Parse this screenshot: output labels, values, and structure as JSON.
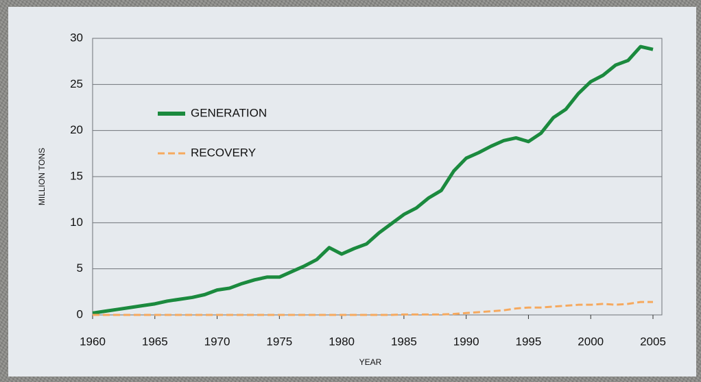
{
  "chart_data": {
    "type": "line",
    "ylabel": "MILLION TONS",
    "xlabel": "YEAR",
    "x": [
      1960,
      1961,
      1962,
      1963,
      1964,
      1965,
      1966,
      1967,
      1968,
      1969,
      1970,
      1971,
      1972,
      1973,
      1974,
      1975,
      1976,
      1977,
      1978,
      1979,
      1980,
      1981,
      1982,
      1983,
      1984,
      1985,
      1986,
      1987,
      1988,
      1989,
      1990,
      1991,
      1992,
      1993,
      1994,
      1995,
      1996,
      1997,
      1998,
      1999,
      2000,
      2001,
      2002,
      2003,
      2004,
      2005
    ],
    "series": [
      {
        "name": "GENERATION",
        "color": "#1b8a3e",
        "style": "solid",
        "values": [
          0.2,
          0.4,
          0.6,
          0.8,
          1.0,
          1.2,
          1.5,
          1.7,
          1.9,
          2.2,
          2.7,
          2.9,
          3.4,
          3.8,
          4.1,
          4.1,
          4.7,
          5.3,
          6.0,
          7.3,
          6.6,
          7.2,
          7.7,
          8.9,
          9.9,
          10.9,
          11.6,
          12.7,
          13.5,
          15.6,
          17.0,
          17.6,
          18.3,
          18.9,
          19.2,
          18.8,
          19.7,
          21.4,
          22.3,
          24.0,
          25.3,
          26.0,
          27.1,
          27.6,
          29.1,
          28.8
        ]
      },
      {
        "name": "RECOVERY",
        "color": "#f6a95e",
        "style": "dashed",
        "values": [
          0,
          0,
          0,
          0,
          0,
          0,
          0,
          0,
          0,
          0,
          0,
          0,
          0,
          0,
          0,
          0,
          0,
          0,
          0,
          0,
          0,
          0,
          0,
          0,
          0,
          0.05,
          0.05,
          0.05,
          0.05,
          0.1,
          0.2,
          0.3,
          0.4,
          0.5,
          0.7,
          0.8,
          0.8,
          0.9,
          1.0,
          1.1,
          1.1,
          1.2,
          1.1,
          1.2,
          1.4,
          1.4
        ]
      }
    ],
    "xlim": [
      1960,
      2005
    ],
    "xticks": [
      1960,
      1965,
      1970,
      1975,
      1980,
      1985,
      1990,
      1995,
      2000,
      2005
    ],
    "ylim": [
      0,
      30
    ],
    "yticks": [
      0,
      5,
      10,
      15,
      20,
      25,
      30
    ],
    "grid": true,
    "legend": "upper left"
  }
}
